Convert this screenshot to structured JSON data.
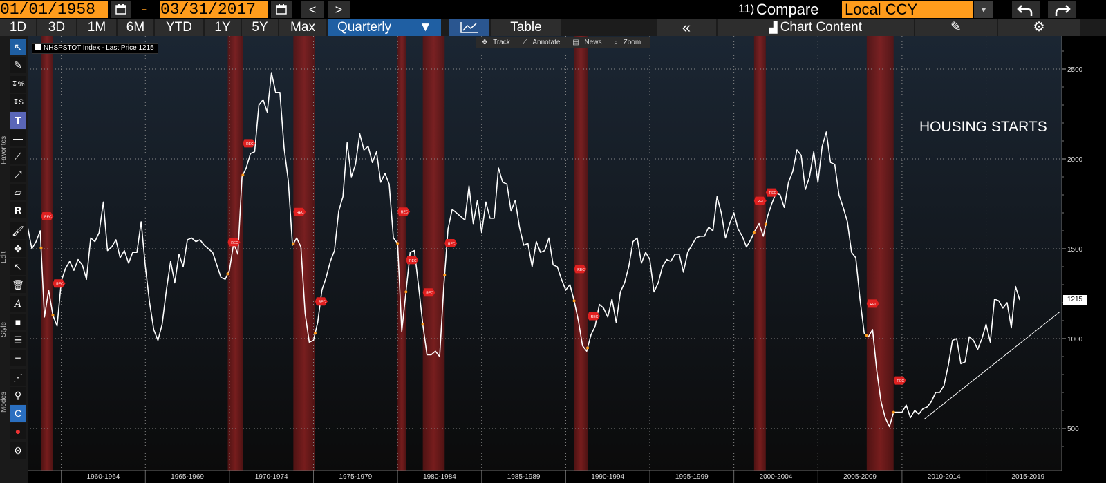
{
  "toolbar": {
    "start_date": "01/01/1958",
    "end_date": "03/31/2017",
    "date_separator": "-",
    "prev_label": "<",
    "next_label": ">",
    "compare_number": "11)",
    "compare_label": "Compare",
    "currency": "Local CCY"
  },
  "range_bar": {
    "buttons": [
      "1D",
      "3D",
      "1M",
      "6M",
      "YTD",
      "1Y",
      "5Y",
      "Max"
    ],
    "periodicity": "Quarterly",
    "table_label": "Table",
    "collapse_label": "«",
    "chart_content_label": "Chart Content"
  },
  "left_tools": {
    "sections": [
      "Favorites",
      "Edit",
      "Style",
      "Modes"
    ]
  },
  "annotation_bar": {
    "track": "Track",
    "annotate": "Annotate",
    "news": "News",
    "zoom": "Zoom"
  },
  "legend": {
    "label": "NHSPSTOT Index - Last Price 1215"
  },
  "note": "HOUSING STARTS",
  "last_price_tag": "1215",
  "colors": {
    "background_top": "#1b2633",
    "background_bottom": "#0b0b0b",
    "line": "#ffffff",
    "recession": "#7a1a1a",
    "accent_orange": "#ff9c1c",
    "selected_blue": "#1f5fa3"
  },
  "chart_data": {
    "type": "line",
    "title": "",
    "xlabel": "",
    "ylabel": "",
    "y_ticks": [
      500,
      1000,
      1500,
      2000,
      2500
    ],
    "ylim": [
      400,
      2600
    ],
    "xlim": [
      1958,
      2019.5
    ],
    "x_ticks": [
      "1960-1964",
      "1965-1969",
      "1970-1974",
      "1975-1979",
      "1980-1984",
      "1985-1989",
      "1990-1994",
      "1995-1999",
      "2000-2004",
      "2005-2009",
      "2010-2014",
      "2015-2019"
    ],
    "recessions": [
      [
        1958.8,
        1959.5
      ],
      [
        1969.9,
        1970.8
      ],
      [
        1973.8,
        1975.1
      ],
      [
        1980.0,
        1980.5
      ],
      [
        1981.5,
        1982.8
      ],
      [
        1990.5,
        1991.3
      ],
      [
        2001.2,
        2001.9
      ],
      [
        2007.9,
        2009.5
      ]
    ],
    "trendline": {
      "x": [
        2011.3,
        2019.4
      ],
      "y": [
        550,
        1150
      ]
    },
    "series": [
      {
        "points": [
          [
            1958.0,
            1620
          ],
          [
            1958.25,
            1500
          ],
          [
            1958.5,
            1540
          ],
          [
            1958.75,
            1600
          ],
          [
            1959.0,
            1120
          ],
          [
            1959.25,
            1270
          ],
          [
            1959.5,
            1130
          ],
          [
            1959.75,
            1070
          ],
          [
            1960.0,
            1320
          ],
          [
            1960.25,
            1390
          ],
          [
            1960.5,
            1430
          ],
          [
            1960.75,
            1380
          ],
          [
            1961.0,
            1440
          ],
          [
            1961.25,
            1410
          ],
          [
            1961.5,
            1330
          ],
          [
            1961.75,
            1560
          ],
          [
            1962.0,
            1540
          ],
          [
            1962.25,
            1590
          ],
          [
            1962.5,
            1760
          ],
          [
            1962.75,
            1490
          ],
          [
            1963.0,
            1510
          ],
          [
            1963.25,
            1550
          ],
          [
            1963.5,
            1450
          ],
          [
            1963.75,
            1490
          ],
          [
            1964.0,
            1420
          ],
          [
            1964.25,
            1480
          ],
          [
            1964.5,
            1480
          ],
          [
            1964.75,
            1650
          ],
          [
            1965.0,
            1400
          ],
          [
            1965.25,
            1200
          ],
          [
            1965.5,
            1050
          ],
          [
            1965.75,
            990
          ],
          [
            1966.0,
            1080
          ],
          [
            1966.25,
            1270
          ],
          [
            1966.5,
            1430
          ],
          [
            1966.75,
            1310
          ],
          [
            1967.0,
            1470
          ],
          [
            1967.25,
            1400
          ],
          [
            1967.5,
            1550
          ],
          [
            1967.75,
            1560
          ],
          [
            1968.0,
            1540
          ],
          [
            1968.25,
            1550
          ],
          [
            1968.5,
            1520
          ],
          [
            1968.75,
            1500
          ],
          [
            1969.0,
            1480
          ],
          [
            1969.5,
            1340
          ],
          [
            1969.75,
            1330
          ],
          [
            1970.0,
            1380
          ],
          [
            1970.25,
            1530
          ],
          [
            1970.5,
            1470
          ],
          [
            1970.75,
            1900
          ],
          [
            1971.0,
            1950
          ],
          [
            1971.25,
            2030
          ],
          [
            1971.5,
            2040
          ],
          [
            1971.75,
            2300
          ],
          [
            1972.0,
            2330
          ],
          [
            1972.25,
            2260
          ],
          [
            1972.5,
            2480
          ],
          [
            1972.75,
            2370
          ],
          [
            1973.0,
            2370
          ],
          [
            1973.25,
            2060
          ],
          [
            1973.5,
            1880
          ],
          [
            1973.75,
            1520
          ],
          [
            1974.0,
            1560
          ],
          [
            1974.25,
            1510
          ],
          [
            1974.5,
            1140
          ],
          [
            1974.75,
            980
          ],
          [
            1975.0,
            990
          ],
          [
            1975.25,
            1090
          ],
          [
            1975.5,
            1270
          ],
          [
            1975.75,
            1340
          ],
          [
            1976.0,
            1430
          ],
          [
            1976.25,
            1490
          ],
          [
            1976.5,
            1710
          ],
          [
            1976.75,
            1790
          ],
          [
            1977.0,
            2090
          ],
          [
            1977.25,
            1900
          ],
          [
            1977.5,
            1970
          ],
          [
            1977.75,
            2140
          ],
          [
            1978.0,
            2050
          ],
          [
            1978.25,
            2070
          ],
          [
            1978.5,
            1980
          ],
          [
            1978.75,
            2040
          ],
          [
            1979.0,
            1870
          ],
          [
            1979.25,
            1920
          ],
          [
            1979.5,
            1860
          ],
          [
            1979.75,
            1560
          ],
          [
            1980.0,
            1530
          ],
          [
            1980.25,
            1040
          ],
          [
            1980.5,
            1260
          ],
          [
            1980.75,
            1480
          ],
          [
            1981.0,
            1490
          ],
          [
            1981.25,
            1290
          ],
          [
            1981.5,
            1080
          ],
          [
            1981.75,
            910
          ],
          [
            1982.0,
            910
          ],
          [
            1982.25,
            930
          ],
          [
            1982.5,
            900
          ],
          [
            1982.75,
            1290
          ],
          [
            1983.0,
            1610
          ],
          [
            1983.25,
            1720
          ],
          [
            1983.5,
            1700
          ],
          [
            1983.75,
            1680
          ],
          [
            1984.0,
            1660
          ],
          [
            1984.25,
            1850
          ],
          [
            1984.5,
            1640
          ],
          [
            1984.75,
            1770
          ],
          [
            1985.0,
            1590
          ],
          [
            1985.25,
            1760
          ],
          [
            1985.5,
            1670
          ],
          [
            1985.75,
            1670
          ],
          [
            1986.0,
            1950
          ],
          [
            1986.25,
            1870
          ],
          [
            1986.5,
            1860
          ],
          [
            1986.75,
            1710
          ],
          [
            1987.0,
            1770
          ],
          [
            1987.25,
            1620
          ],
          [
            1987.5,
            1520
          ],
          [
            1987.75,
            1530
          ],
          [
            1988.0,
            1400
          ],
          [
            1988.25,
            1540
          ],
          [
            1988.5,
            1480
          ],
          [
            1988.75,
            1490
          ],
          [
            1989.0,
            1560
          ],
          [
            1989.25,
            1410
          ],
          [
            1989.5,
            1400
          ],
          [
            1989.75,
            1330
          ],
          [
            1990.0,
            1270
          ],
          [
            1990.25,
            1300
          ],
          [
            1990.5,
            1210
          ],
          [
            1990.75,
            1100
          ],
          [
            1991.0,
            960
          ],
          [
            1991.25,
            930
          ],
          [
            1991.5,
            1020
          ],
          [
            1991.75,
            1070
          ],
          [
            1992.0,
            1190
          ],
          [
            1992.25,
            1170
          ],
          [
            1992.5,
            1120
          ],
          [
            1992.75,
            1220
          ],
          [
            1993.0,
            1090
          ],
          [
            1993.25,
            1260
          ],
          [
            1993.5,
            1310
          ],
          [
            1993.75,
            1400
          ],
          [
            1994.0,
            1540
          ],
          [
            1994.25,
            1560
          ],
          [
            1994.5,
            1420
          ],
          [
            1994.75,
            1480
          ],
          [
            1995.0,
            1440
          ],
          [
            1995.25,
            1260
          ],
          [
            1995.5,
            1310
          ],
          [
            1995.75,
            1400
          ],
          [
            1996.0,
            1440
          ],
          [
            1996.25,
            1430
          ],
          [
            1996.5,
            1470
          ],
          [
            1996.75,
            1470
          ],
          [
            1997.0,
            1370
          ],
          [
            1997.25,
            1480
          ],
          [
            1997.5,
            1520
          ],
          [
            1997.75,
            1560
          ],
          [
            1998.0,
            1570
          ],
          [
            1998.25,
            1570
          ],
          [
            1998.5,
            1620
          ],
          [
            1998.75,
            1600
          ],
          [
            1999.0,
            1790
          ],
          [
            1999.25,
            1700
          ],
          [
            1999.5,
            1560
          ],
          [
            1999.75,
            1640
          ],
          [
            2000.0,
            1700
          ],
          [
            2000.25,
            1610
          ],
          [
            2000.5,
            1570
          ],
          [
            2000.75,
            1510
          ],
          [
            2001.0,
            1550
          ],
          [
            2001.25,
            1600
          ],
          [
            2001.5,
            1640
          ],
          [
            2001.75,
            1570
          ],
          [
            2002.0,
            1680
          ],
          [
            2002.25,
            1750
          ],
          [
            2002.5,
            1810
          ],
          [
            2002.75,
            1800
          ],
          [
            2003.0,
            1730
          ],
          [
            2003.25,
            1870
          ],
          [
            2003.5,
            1930
          ],
          [
            2003.75,
            2050
          ],
          [
            2004.0,
            2020
          ],
          [
            2004.25,
            1830
          ],
          [
            2004.5,
            1900
          ],
          [
            2004.75,
            2040
          ],
          [
            2005.0,
            1870
          ],
          [
            2005.25,
            2070
          ],
          [
            2005.5,
            2150
          ],
          [
            2005.75,
            1980
          ],
          [
            2006.0,
            1970
          ],
          [
            2006.25,
            1800
          ],
          [
            2006.5,
            1730
          ],
          [
            2006.75,
            1650
          ],
          [
            2007.0,
            1480
          ],
          [
            2007.25,
            1450
          ],
          [
            2007.5,
            1220
          ],
          [
            2007.75,
            1030
          ],
          [
            2008.0,
            1010
          ],
          [
            2008.25,
            1050
          ],
          [
            2008.5,
            820
          ],
          [
            2008.75,
            650
          ],
          [
            2009.0,
            560
          ],
          [
            2009.25,
            510
          ],
          [
            2009.5,
            590
          ],
          [
            2009.75,
            590
          ],
          [
            2010.0,
            590
          ],
          [
            2010.25,
            630
          ],
          [
            2010.5,
            560
          ],
          [
            2010.75,
            600
          ],
          [
            2011.0,
            580
          ],
          [
            2011.25,
            610
          ],
          [
            2011.5,
            620
          ],
          [
            2011.75,
            650
          ],
          [
            2012.0,
            700
          ],
          [
            2012.25,
            700
          ],
          [
            2012.5,
            740
          ],
          [
            2012.75,
            850
          ],
          [
            2013.0,
            990
          ],
          [
            2013.25,
            1000
          ],
          [
            2013.5,
            860
          ],
          [
            2013.75,
            870
          ],
          [
            2014.0,
            1010
          ],
          [
            2014.25,
            990
          ],
          [
            2014.5,
            940
          ],
          [
            2014.75,
            1000
          ],
          [
            2015.0,
            1080
          ],
          [
            2015.25,
            980
          ],
          [
            2015.5,
            1220
          ],
          [
            2015.75,
            1210
          ],
          [
            2016.0,
            1170
          ],
          [
            2016.25,
            1200
          ],
          [
            2016.5,
            1060
          ],
          [
            2016.75,
            1290
          ],
          [
            2017.0,
            1215
          ]
        ]
      }
    ]
  }
}
